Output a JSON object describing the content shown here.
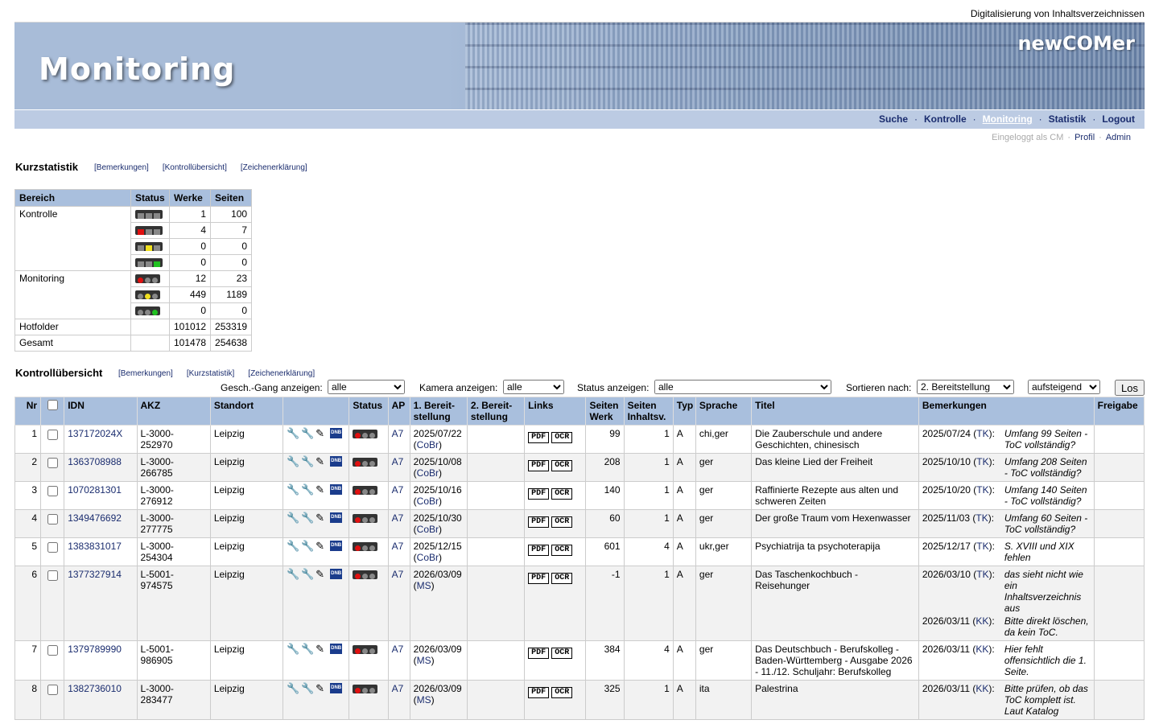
{
  "header": {
    "top_text": "Digitalisierung von Inhaltsverzeichnissen",
    "title": "Monitoring",
    "brand": "newCOMer"
  },
  "nav": {
    "items": [
      {
        "label": "Suche",
        "active": false
      },
      {
        "label": "Kontrolle",
        "active": false
      },
      {
        "label": "Monitoring",
        "active": true
      },
      {
        "label": "Statistik",
        "active": false
      },
      {
        "label": "Logout",
        "active": false
      }
    ],
    "logged_in": "Eingeloggt als CM",
    "profil": "Profil",
    "admin": "Admin"
  },
  "kurzstatistik": {
    "title": "Kurzstatistik",
    "links": [
      "[Bemerkungen]",
      "[Kontrollübersicht]",
      "[Zeichenerklärung]"
    ],
    "headers": [
      "Bereich",
      "Status",
      "Werke",
      "Seiten"
    ],
    "kontrolle_label": "Kontrolle",
    "kontrolle_rows": [
      {
        "werke": "1",
        "seiten": "100"
      },
      {
        "werke": "4",
        "seiten": "7"
      },
      {
        "werke": "0",
        "seiten": "0"
      },
      {
        "werke": "0",
        "seiten": "0"
      }
    ],
    "monitoring_label": "Monitoring",
    "monitoring_rows": [
      {
        "werke": "12",
        "seiten": "23"
      },
      {
        "werke": "449",
        "seiten": "1189"
      },
      {
        "werke": "0",
        "seiten": "0"
      }
    ],
    "hotfolder": {
      "label": "Hotfolder",
      "werke": "101012",
      "seiten": "253319"
    },
    "gesamt": {
      "label": "Gesamt",
      "werke": "101478",
      "seiten": "254638"
    }
  },
  "kontrolluebersicht": {
    "title": "Kontrollübersicht",
    "links": [
      "[Bemerkungen]",
      "[Kurzstatistik]",
      "[Zeichenerklärung]"
    ]
  },
  "filters": {
    "gang_label": "Gesch.-Gang anzeigen:",
    "gang_value": "alle",
    "kamera_label": "Kamera anzeigen:",
    "kamera_value": "alle",
    "status_label": "Status anzeigen:",
    "status_value": "alle",
    "sort_label": "Sortieren nach:",
    "sort_value": "2. Bereitstellung",
    "order_value": "aufsteigend",
    "go_label": "Los"
  },
  "table": {
    "headers": {
      "nr": "Nr",
      "idn": "IDN",
      "akz": "AKZ",
      "standort": "Standort",
      "status": "Status",
      "ap": "AP",
      "b1a": "1. Bereit-",
      "b1b": "stellung",
      "b2a": "2. Bereit-",
      "b2b": "stellung",
      "links": "Links",
      "swa": "Seiten",
      "swb": "Werk",
      "sia": "Seiten",
      "sib": "Inhaltsv.",
      "typ": "Typ",
      "sprache": "Sprache",
      "titel": "Titel",
      "bemerkungen": "Bemerkungen",
      "freigabe": "Freigabe"
    },
    "pdf_label": "PDF",
    "ocr_label": "OCR",
    "rows": [
      {
        "nr": "1",
        "idn": "137172024X",
        "akz1": "L-3000-",
        "akz2": "252970",
        "standort": "Leipzig",
        "ap": "A7",
        "b1date": "2025/07/22",
        "b1who": "CoBr",
        "seiten_werk": "99",
        "seiten_inh": "1",
        "typ": "A",
        "sprache": "chi,ger",
        "titel": "Die Zauberschule und andere Geschichten, chinesisch",
        "remarks": [
          {
            "date": "2025/07/24",
            "who": "TK",
            "text": "Umfang 99 Seiten - ToC vollständig?"
          }
        ]
      },
      {
        "nr": "2",
        "idn": "1363708988",
        "akz1": "L-3000-",
        "akz2": "266785",
        "standort": "Leipzig",
        "ap": "A7",
        "b1date": "2025/10/08",
        "b1who": "CoBr",
        "seiten_werk": "208",
        "seiten_inh": "1",
        "typ": "A",
        "sprache": "ger",
        "titel": "Das kleine Lied der Freiheit",
        "remarks": [
          {
            "date": "2025/10/10",
            "who": "TK",
            "text": "Umfang 208 Seiten - ToC vollständig?"
          }
        ]
      },
      {
        "nr": "3",
        "idn": "1070281301",
        "akz1": "L-3000-",
        "akz2": "276912",
        "standort": "Leipzig",
        "ap": "A7",
        "b1date": "2025/10/16",
        "b1who": "CoBr",
        "seiten_werk": "140",
        "seiten_inh": "1",
        "typ": "A",
        "sprache": "ger",
        "titel": "Raffinierte Rezepte aus alten und schweren Zeiten",
        "remarks": [
          {
            "date": "2025/10/20",
            "who": "TK",
            "text": "Umfang 140 Seiten - ToC vollständig?"
          }
        ]
      },
      {
        "nr": "4",
        "idn": "1349476692",
        "akz1": "L-3000-",
        "akz2": "277775",
        "standort": "Leipzig",
        "ap": "A7",
        "b1date": "2025/10/30",
        "b1who": "CoBr",
        "seiten_werk": "60",
        "seiten_inh": "1",
        "typ": "A",
        "sprache": "ger",
        "titel": "Der große Traum vom Hexenwasser",
        "remarks": [
          {
            "date": "2025/11/03",
            "who": "TK",
            "text": "Umfang 60 Seiten - ToC vollständig?"
          }
        ]
      },
      {
        "nr": "5",
        "idn": "1383831017",
        "akz1": "L-3000-",
        "akz2": "254304",
        "standort": "Leipzig",
        "ap": "A7",
        "b1date": "2025/12/15",
        "b1who": "CoBr",
        "seiten_werk": "601",
        "seiten_inh": "4",
        "typ": "A",
        "sprache": "ukr,ger",
        "titel": "Psychiatrija ta psychoterapija",
        "remarks": [
          {
            "date": "2025/12/17",
            "who": "TK",
            "text": "S. XVIII und XIX fehlen"
          }
        ]
      },
      {
        "nr": "6",
        "idn": "1377327914",
        "akz1": "L-5001-",
        "akz2": "974575",
        "standort": "Leipzig",
        "ap": "A7",
        "b1date": "2026/03/09",
        "b1who": "MS",
        "seiten_werk": "-1",
        "seiten_inh": "1",
        "typ": "A",
        "sprache": "ger",
        "titel": "Das Taschenkochbuch - Reisehunger",
        "remarks": [
          {
            "date": "2026/03/10",
            "who": "TK",
            "text": "das sieht nicht wie ein Inhaltsverzeichnis aus"
          },
          {
            "date": "2026/03/11",
            "who": "KK",
            "text": "Bitte direkt löschen, da kein ToC."
          }
        ]
      },
      {
        "nr": "7",
        "idn": "1379789990",
        "akz1": "L-5001-",
        "akz2": "986905",
        "standort": "Leipzig",
        "ap": "A7",
        "b1date": "2026/03/09",
        "b1who": "MS",
        "seiten_werk": "384",
        "seiten_inh": "4",
        "typ": "A",
        "sprache": "ger",
        "titel": "Das Deutschbuch - Berufskolleg - Baden-Württemberg - Ausgabe 2026 - 11./12. Schuljahr: Berufskolleg",
        "remarks": [
          {
            "date": "2026/03/11",
            "who": "KK",
            "text": "Hier fehlt offensichtlich die 1. Seite."
          }
        ]
      },
      {
        "nr": "8",
        "idn": "1382736010",
        "akz1": "L-3000-",
        "akz2": "283477",
        "standort": "Leipzig",
        "ap": "A7",
        "b1date": "2026/03/09",
        "b1who": "MS",
        "seiten_werk": "325",
        "seiten_inh": "1",
        "typ": "A",
        "sprache": "ita",
        "titel": "Palestrina",
        "remarks": [
          {
            "date": "2026/03/11",
            "who": "KK",
            "text": "Bitte prüfen, ob das ToC komplett ist. Laut Katalog"
          }
        ]
      }
    ]
  }
}
